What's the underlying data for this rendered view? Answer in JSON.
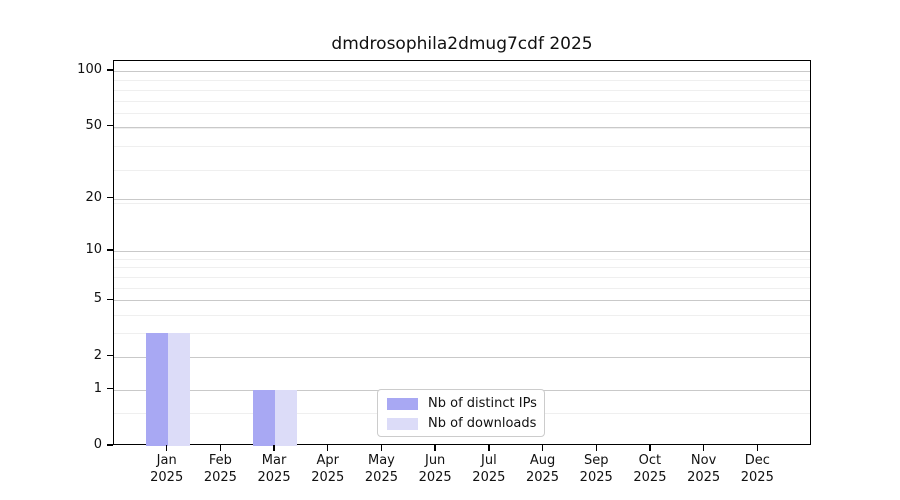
{
  "title": "dmdrosophila2dmug7cdf 2025",
  "chart_data": {
    "type": "bar",
    "title": "dmdrosophila2dmug7cdf 2025",
    "categories": [
      "Jan 2025",
      "Feb 2025",
      "Mar 2025",
      "Apr 2025",
      "May 2025",
      "Jun 2025",
      "Jul 2025",
      "Aug 2025",
      "Sep 2025",
      "Oct 2025",
      "Nov 2025",
      "Dec 2025"
    ],
    "month_labels": [
      "Jan",
      "Feb",
      "Mar",
      "Apr",
      "May",
      "Jun",
      "Jul",
      "Aug",
      "Sep",
      "Oct",
      "Nov",
      "Dec"
    ],
    "year_label": "2025",
    "series": [
      {
        "name": "Nb of distinct IPs",
        "color": "#a8a8f3",
        "values": [
          3,
          0,
          1,
          0,
          0,
          0,
          0,
          0,
          0,
          0,
          0,
          0
        ]
      },
      {
        "name": "Nb of downloads",
        "color": "#dcdcf8",
        "values": [
          3,
          0,
          1,
          0,
          0,
          0,
          0,
          0,
          0,
          0,
          0,
          0
        ]
      }
    ],
    "xlabel": "",
    "ylabel": "",
    "yscale": "log10(value+1)",
    "ylim": [
      0,
      100
    ],
    "yticks": [
      100,
      50,
      20,
      10,
      5,
      2,
      1,
      0
    ],
    "minor_yticks": [
      0.5,
      3,
      4,
      6,
      7,
      8,
      9,
      19,
      29,
      39,
      49,
      59,
      69,
      79,
      89
    ],
    "grid": "horizontal",
    "legend_position": "lower center"
  },
  "legend": {
    "items": [
      {
        "label": "Nb of distinct IPs",
        "color": "#a8a8f3"
      },
      {
        "label": "Nb of downloads",
        "color": "#dcdcf8"
      }
    ]
  },
  "colors": {
    "distinct_ips": "#a8a8f3",
    "downloads": "#dcdcf8",
    "axis": "#000000",
    "grid_major": "#c9c9c9",
    "grid_minor": "#efefef",
    "legend_border": "#cccccc",
    "background": "#ffffff"
  }
}
